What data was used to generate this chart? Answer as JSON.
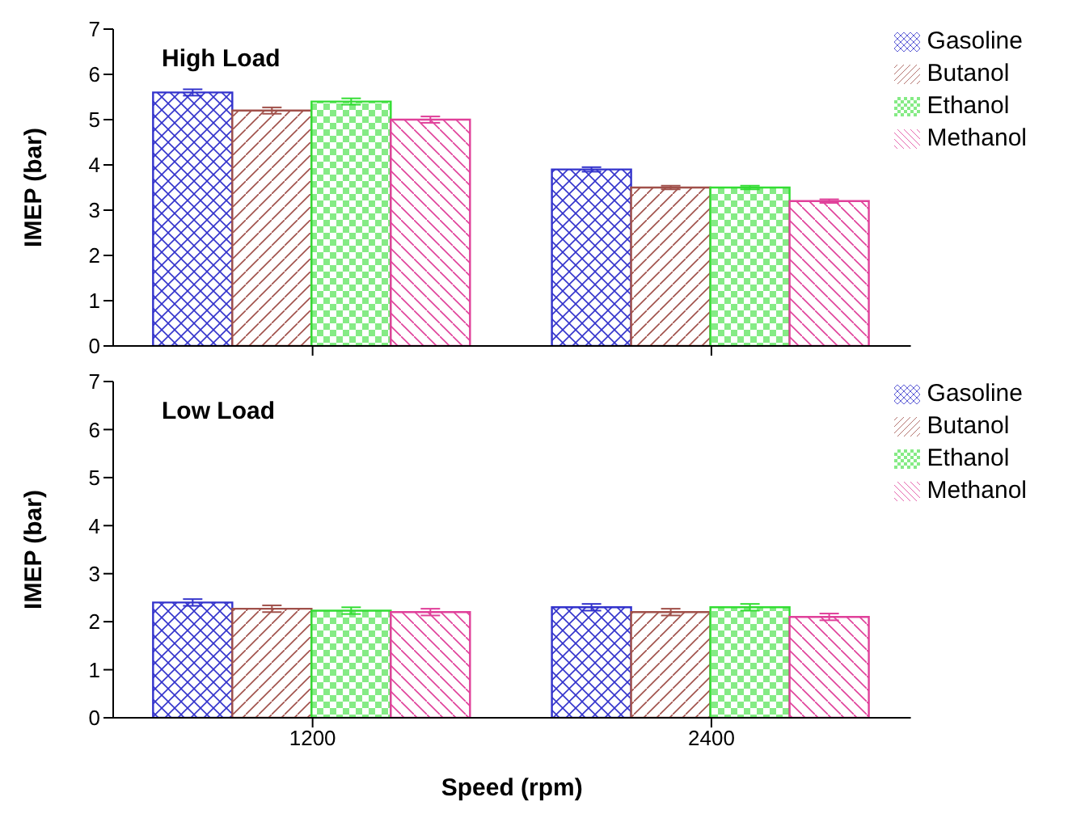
{
  "chart_data": [
    {
      "type": "bar",
      "title": "High Load",
      "ylabel": "IMEP (bar)",
      "categories": [
        "1200",
        "2400"
      ],
      "series": [
        {
          "name": "Gasoline",
          "color": "#3333cc",
          "values": [
            5.6,
            3.9
          ],
          "errors": [
            0.07,
            0.05
          ]
        },
        {
          "name": "Butanol",
          "color": "#a0504a",
          "values": [
            5.2,
            3.5
          ],
          "errors": [
            0.07,
            0.04
          ]
        },
        {
          "name": "Ethanol",
          "color": "#33dd33",
          "values": [
            5.4,
            3.5
          ],
          "errors": [
            0.07,
            0.04
          ]
        },
        {
          "name": "Methanol",
          "color": "#e0409a",
          "values": [
            5.0,
            3.2
          ],
          "errors": [
            0.07,
            0.04
          ]
        }
      ],
      "ylim": [
        0,
        7
      ],
      "yticks": [
        0,
        1,
        2,
        3,
        4,
        5,
        6,
        7
      ],
      "tick_labels": "y",
      "legend": "top right",
      "grid": false
    },
    {
      "type": "bar",
      "title": "Low Load",
      "xlabel": "Speed (rpm)",
      "ylabel": "IMEP (bar)",
      "categories": [
        "1200",
        "2400"
      ],
      "series": [
        {
          "name": "Gasoline",
          "color": "#3333cc",
          "values": [
            2.4,
            2.3
          ],
          "errors": [
            0.07,
            0.07
          ]
        },
        {
          "name": "Butanol",
          "color": "#a0504a",
          "values": [
            2.27,
            2.2
          ],
          "errors": [
            0.07,
            0.07
          ]
        },
        {
          "name": "Ethanol",
          "color": "#33dd33",
          "values": [
            2.23,
            2.3
          ],
          "errors": [
            0.07,
            0.07
          ]
        },
        {
          "name": "Methanol",
          "color": "#e0409a",
          "values": [
            2.2,
            2.1
          ],
          "errors": [
            0.07,
            0.07
          ]
        }
      ],
      "ylim": [
        0,
        7
      ],
      "yticks": [
        0,
        1,
        2,
        3,
        4,
        5,
        6,
        7
      ],
      "legend": "top right",
      "grid": false
    }
  ]
}
